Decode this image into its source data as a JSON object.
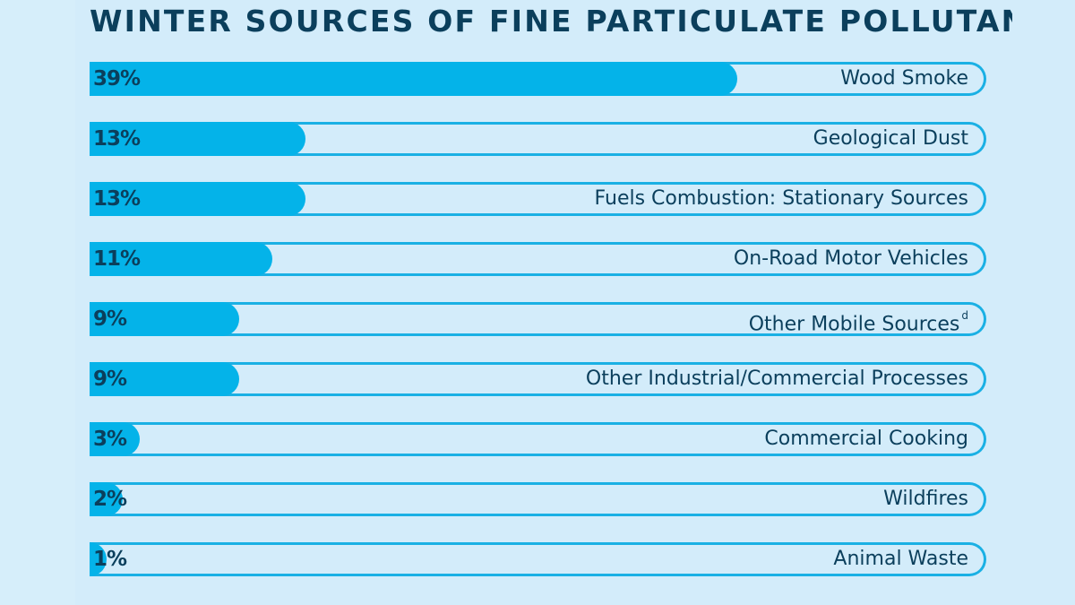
{
  "chart_data": {
    "type": "bar",
    "orientation": "horizontal",
    "title": "WINTER SOURCES OF FINE PARTICULATE POLLUTANTS",
    "categories": [
      "Wood Smoke",
      "Geological Dust",
      "Fuels Combustion: Stationary Sources",
      "On-Road Motor Vehicles",
      "Other Mobile Sources",
      "Other Industrial/Commercial Processes",
      "Commercial Cooking",
      "Wildfires",
      "Animal Waste"
    ],
    "footnotes": [
      "",
      "",
      "",
      "",
      "d",
      "",
      "",
      "",
      ""
    ],
    "values": [
      39,
      13,
      13,
      11,
      9,
      9,
      3,
      2,
      1
    ],
    "value_labels": [
      "39%",
      "13%",
      "13%",
      "11%",
      "9%",
      "9%",
      "3%",
      "2%",
      "1%"
    ],
    "xlim": [
      0,
      54
    ],
    "grid": false,
    "legend": "none",
    "colors": {
      "fill": "#04b3e9",
      "track_border": "#1ab0e4",
      "track_bg": "#d3ecfa",
      "text": "#0b3f5c",
      "background": "#d6eefa"
    }
  }
}
